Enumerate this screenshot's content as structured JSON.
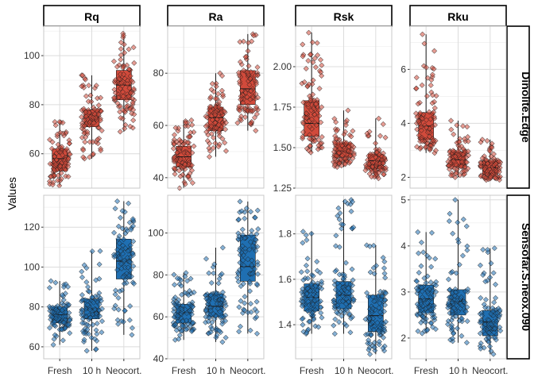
{
  "chart_data": {
    "type": "box+jitter",
    "ylabel": "Values",
    "categories": [
      "Fresh",
      "10 h",
      "Neocort."
    ],
    "columns": [
      "Rq",
      "Ra",
      "Rsk",
      "Rku"
    ],
    "rows": [
      "Dinolite.Edge",
      "Sensofar.S.neox.090"
    ],
    "colors": {
      "Dinolite.Edge": "#d14a3b",
      "Sensofar.S.neox.090": "#1f6fb2"
    },
    "grid": true,
    "scales": "free_y",
    "panels": [
      {
        "row": "Dinolite.Edge",
        "column": "Rq",
        "ylim": [
          46,
          112
        ],
        "yticks": [
          60,
          80,
          100
        ],
        "boxes": [
          {
            "category": "Fresh",
            "min": 47,
            "q1": 53,
            "median": 58,
            "q3": 62,
            "max": 73
          },
          {
            "category": "10 h",
            "min": 58,
            "q1": 71,
            "median": 75,
            "q3": 78,
            "max": 92
          },
          {
            "category": "Neocort.",
            "min": 69,
            "q1": 82,
            "median": 88,
            "q3": 94,
            "max": 109
          }
        ]
      },
      {
        "row": "Dinolite.Edge",
        "column": "Ra",
        "ylim": [
          36,
          98
        ],
        "yticks": [
          40,
          60,
          80
        ],
        "boxes": [
          {
            "category": "Fresh",
            "min": 36,
            "q1": 44,
            "median": 48,
            "q3": 52,
            "max": 62
          },
          {
            "category": "10 h",
            "min": 48,
            "q1": 58,
            "median": 63,
            "q3": 67,
            "max": 80
          },
          {
            "category": "Neocort.",
            "min": 58,
            "q1": 68,
            "median": 74,
            "q3": 81,
            "max": 95
          }
        ]
      },
      {
        "row": "Dinolite.Edge",
        "column": "Rsk",
        "ylim": [
          1.25,
          2.25
        ],
        "yticks": [
          1.25,
          1.5,
          1.75,
          2.0
        ],
        "yticklabels": [
          "1.25",
          "1.50",
          "1.75",
          "2.00"
        ],
        "boxes": [
          {
            "category": "Fresh",
            "min": 1.47,
            "q1": 1.57,
            "median": 1.65,
            "q3": 1.79,
            "max": 2.21
          },
          {
            "category": "10 h",
            "min": 1.38,
            "q1": 1.44,
            "median": 1.48,
            "q3": 1.53,
            "max": 1.73
          },
          {
            "category": "Neocort.",
            "min": 1.31,
            "q1": 1.37,
            "median": 1.42,
            "q3": 1.46,
            "max": 1.68
          }
        ]
      },
      {
        "row": "Dinolite.Edge",
        "column": "Rku",
        "ylim": [
          1.6,
          7.6
        ],
        "yticks": [
          2,
          4,
          6
        ],
        "boxes": [
          {
            "category": "Fresh",
            "min": 2.9,
            "q1": 3.4,
            "median": 3.9,
            "q3": 4.4,
            "max": 7.3
          },
          {
            "category": "10 h",
            "min": 2.0,
            "q1": 2.4,
            "median": 2.65,
            "q3": 2.95,
            "max": 4.1
          },
          {
            "category": "Neocort.",
            "min": 1.9,
            "q1": 2.1,
            "median": 2.35,
            "q3": 2.6,
            "max": 3.4
          }
        ]
      },
      {
        "row": "Sensofar.S.neox.090",
        "column": "Rq",
        "ylim": [
          54,
          136
        ],
        "yticks": [
          60,
          80,
          100,
          120
        ],
        "boxes": [
          {
            "category": "Fresh",
            "min": 61,
            "q1": 72,
            "median": 76,
            "q3": 80,
            "max": 93
          },
          {
            "category": "10 h",
            "min": 58,
            "q1": 74,
            "median": 79,
            "q3": 84,
            "max": 108
          },
          {
            "category": "Neocort.",
            "min": 66,
            "q1": 94,
            "median": 103,
            "q3": 114,
            "max": 133
          }
        ]
      },
      {
        "row": "Sensofar.S.neox.090",
        "column": "Ra",
        "ylim": [
          40,
          118
        ],
        "yticks": [
          40,
          60,
          80,
          100
        ],
        "boxes": [
          {
            "category": "Fresh",
            "min": 49,
            "q1": 57,
            "median": 62,
            "q3": 66,
            "max": 81
          },
          {
            "category": "10 h",
            "min": 48,
            "q1": 60,
            "median": 65,
            "q3": 71,
            "max": 93
          },
          {
            "category": "Neocort.",
            "min": 52,
            "q1": 77,
            "median": 84,
            "q3": 99,
            "max": 115
          }
        ]
      },
      {
        "row": "Sensofar.S.neox.090",
        "column": "Rsk",
        "ylim": [
          1.25,
          1.97
        ],
        "yticks": [
          1.4,
          1.6,
          1.8
        ],
        "yticklabels": [
          "1.4",
          "1.6",
          "1.8"
        ],
        "boxes": [
          {
            "category": "Fresh",
            "min": 1.36,
            "q1": 1.46,
            "median": 1.52,
            "q3": 1.58,
            "max": 1.81
          },
          {
            "category": "10 h",
            "min": 1.36,
            "q1": 1.47,
            "median": 1.53,
            "q3": 1.59,
            "max": 1.95
          },
          {
            "category": "Neocort.",
            "min": 1.27,
            "q1": 1.37,
            "median": 1.44,
            "q3": 1.53,
            "max": 1.75
          }
        ]
      },
      {
        "row": "Sensofar.S.neox.090",
        "column": "Rku",
        "ylim": [
          1.55,
          5.1
        ],
        "yticks": [
          2,
          3,
          4,
          5
        ],
        "boxes": [
          {
            "category": "Fresh",
            "min": 2.1,
            "q1": 2.55,
            "median": 2.85,
            "q3": 3.15,
            "max": 4.3
          },
          {
            "category": "10 h",
            "min": 1.9,
            "q1": 2.5,
            "median": 2.8,
            "q3": 3.05,
            "max": 5.0
          },
          {
            "category": "Neocort.",
            "min": 1.65,
            "q1": 2.05,
            "median": 2.35,
            "q3": 2.6,
            "max": 3.95
          }
        ]
      }
    ]
  }
}
